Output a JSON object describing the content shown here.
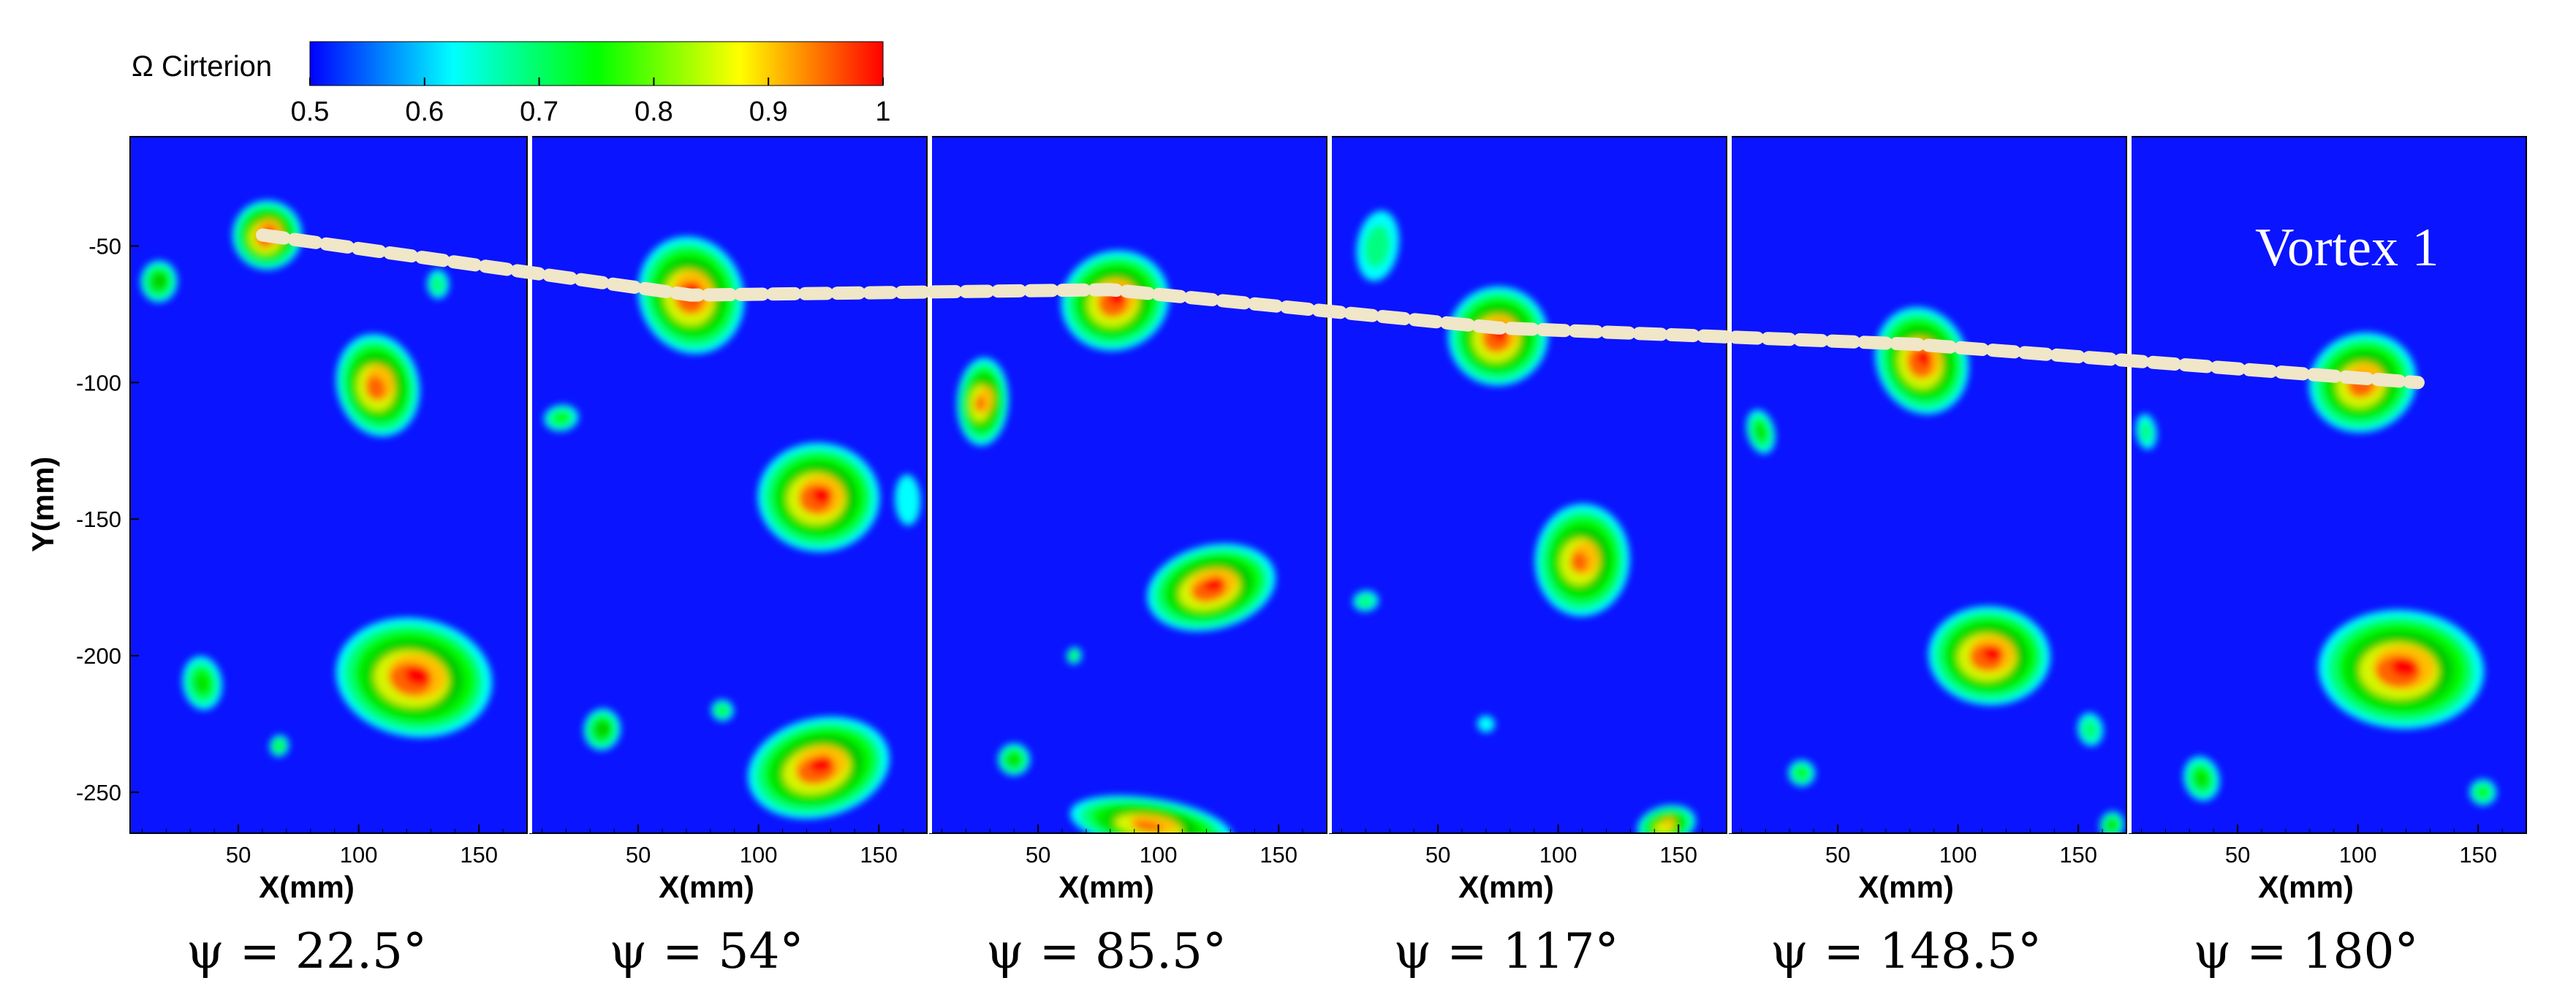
{
  "colorbar": {
    "label": "Ω Cirterion",
    "ticks": [
      "0.5",
      "0.6",
      "0.7",
      "0.8",
      "0.9",
      "1"
    ],
    "colors": [
      "#0000ff",
      "#00ffff",
      "#00ff00",
      "#ffff00",
      "#ff0000"
    ]
  },
  "background_color": "#0a14ff",
  "annotation": "Vortex 1",
  "chart_data": [
    {
      "type": "heatmap",
      "title": "ψ = 22.5°",
      "xlabel": "X(mm)",
      "ylabel": "Y(mm)",
      "xlim": [
        5,
        170
      ],
      "ylim": [
        -265,
        -10
      ],
      "xticks": [
        "50",
        "100",
        "150"
      ],
      "yticks": [
        "-50",
        "-100",
        "-150",
        "-200",
        "-250"
      ],
      "vortex1_center": [
        60,
        -46
      ],
      "blobs": [
        {
          "x": 62,
          "y": -46,
          "rx": 16,
          "ry": 14,
          "peak": 1.0
        },
        {
          "x": 17,
          "y": -63,
          "rx": 9,
          "ry": 9,
          "peak": 0.8
        },
        {
          "x": 108,
          "y": -101,
          "rx": 19,
          "ry": 21,
          "peak": 0.98
        },
        {
          "x": 123,
          "y": -208,
          "rx": 36,
          "ry": 24,
          "peak": 1.0
        },
        {
          "x": 35,
          "y": -210,
          "rx": 10,
          "ry": 12,
          "peak": 0.75
        },
        {
          "x": 67,
          "y": -233,
          "rx": 5,
          "ry": 5,
          "peak": 0.72
        },
        {
          "x": 133,
          "y": -64,
          "rx": 6,
          "ry": 7,
          "peak": 0.68
        }
      ]
    },
    {
      "type": "heatmap",
      "title": "ψ = 54°",
      "xlabel": "X(mm)",
      "xlim": [
        5,
        170
      ],
      "ylim": [
        -265,
        -10
      ],
      "xticks": [
        "50",
        "100",
        "150"
      ],
      "vortex1_center": [
        72,
        -68
      ],
      "blobs": [
        {
          "x": 72,
          "y": -68,
          "rx": 24,
          "ry": 24,
          "peak": 1.0
        },
        {
          "x": 125,
          "y": -142,
          "rx": 28,
          "ry": 22,
          "peak": 1.0
        },
        {
          "x": 125,
          "y": -241,
          "rx": 33,
          "ry": 20,
          "peak": 1.0
        },
        {
          "x": 35,
          "y": -227,
          "rx": 9,
          "ry": 9,
          "peak": 0.8
        },
        {
          "x": 18,
          "y": -113,
          "rx": 9,
          "ry": 6,
          "peak": 0.72
        },
        {
          "x": 85,
          "y": -220,
          "rx": 6,
          "ry": 5,
          "peak": 0.7
        },
        {
          "x": 162,
          "y": -143,
          "rx": 8,
          "ry": 14,
          "peak": 0.62
        }
      ]
    },
    {
      "type": "heatmap",
      "title": "ψ = 85.5°",
      "xlabel": "X(mm)",
      "xlim": [
        5,
        170
      ],
      "ylim": [
        -265,
        -10
      ],
      "xticks": [
        "50",
        "100",
        "150"
      ],
      "vortex1_center": [
        80,
        -66
      ],
      "blobs": [
        {
          "x": 82,
          "y": -70,
          "rx": 25,
          "ry": 20,
          "peak": 1.0
        },
        {
          "x": 27,
          "y": -107,
          "rx": 12,
          "ry": 18,
          "peak": 0.95
        },
        {
          "x": 122,
          "y": -175,
          "rx": 30,
          "ry": 17,
          "peak": 1.0
        },
        {
          "x": 97,
          "y": -262,
          "rx": 38,
          "ry": 11,
          "peak": 0.95
        },
        {
          "x": 40,
          "y": -238,
          "rx": 8,
          "ry": 7,
          "peak": 0.78
        },
        {
          "x": 65,
          "y": -200,
          "rx": 4,
          "ry": 4,
          "peak": 0.7
        }
      ]
    },
    {
      "type": "heatmap",
      "title": "ψ = 117°",
      "xlabel": "X(mm)",
      "xlim": [
        5,
        170
      ],
      "ylim": [
        -265,
        -10
      ],
      "xticks": [
        "50",
        "100",
        "150"
      ],
      "vortex1_center": [
        75,
        -80
      ],
      "blobs": [
        {
          "x": 75,
          "y": -83,
          "rx": 23,
          "ry": 20,
          "peak": 1.0
        },
        {
          "x": 110,
          "y": -165,
          "rx": 22,
          "ry": 23,
          "peak": 0.95
        },
        {
          "x": 145,
          "y": -262,
          "rx": 14,
          "ry": 8,
          "peak": 0.9
        },
        {
          "x": 25,
          "y": -50,
          "rx": 12,
          "ry": 18,
          "peak": 0.65
        },
        {
          "x": 20,
          "y": -180,
          "rx": 7,
          "ry": 5,
          "peak": 0.68
        },
        {
          "x": 70,
          "y": -225,
          "rx": 6,
          "ry": 5,
          "peak": 0.6
        }
      ]
    },
    {
      "type": "heatmap",
      "title": "ψ = 148.5°",
      "xlabel": "X(mm)",
      "xlim": [
        5,
        170
      ],
      "ylim": [
        -265,
        -10
      ],
      "xticks": [
        "50",
        "100",
        "150"
      ],
      "vortex1_center": [
        82,
        -86
      ],
      "blobs": [
        {
          "x": 85,
          "y": -92,
          "rx": 21,
          "ry": 22,
          "peak": 1.0
        },
        {
          "x": 113,
          "y": -200,
          "rx": 28,
          "ry": 20,
          "peak": 1.0
        },
        {
          "x": 18,
          "y": -118,
          "rx": 7,
          "ry": 10,
          "peak": 0.75
        },
        {
          "x": 35,
          "y": -243,
          "rx": 7,
          "ry": 6,
          "peak": 0.72
        },
        {
          "x": 155,
          "y": -227,
          "rx": 7,
          "ry": 8,
          "peak": 0.68
        },
        {
          "x": 164,
          "y": -262,
          "rx": 6,
          "ry": 6,
          "peak": 0.78
        }
      ]
    },
    {
      "type": "heatmap",
      "title": "ψ = 180°",
      "xlabel": "X(mm)",
      "xlim": [
        5,
        170
      ],
      "ylim": [
        -265,
        -10
      ],
      "xticks": [
        "50",
        "100",
        "150"
      ],
      "vortex1_center": [
        125,
        -100
      ],
      "blobs": [
        {
          "x": 102,
          "y": -100,
          "rx": 25,
          "ry": 20,
          "peak": 0.98
        },
        {
          "x": 118,
          "y": -205,
          "rx": 38,
          "ry": 24,
          "peak": 1.0
        },
        {
          "x": 35,
          "y": -245,
          "rx": 9,
          "ry": 10,
          "peak": 0.75
        },
        {
          "x": 152,
          "y": -250,
          "rx": 7,
          "ry": 6,
          "peak": 0.72
        },
        {
          "x": 12,
          "y": -118,
          "rx": 6,
          "ry": 9,
          "peak": 0.65
        }
      ]
    }
  ]
}
